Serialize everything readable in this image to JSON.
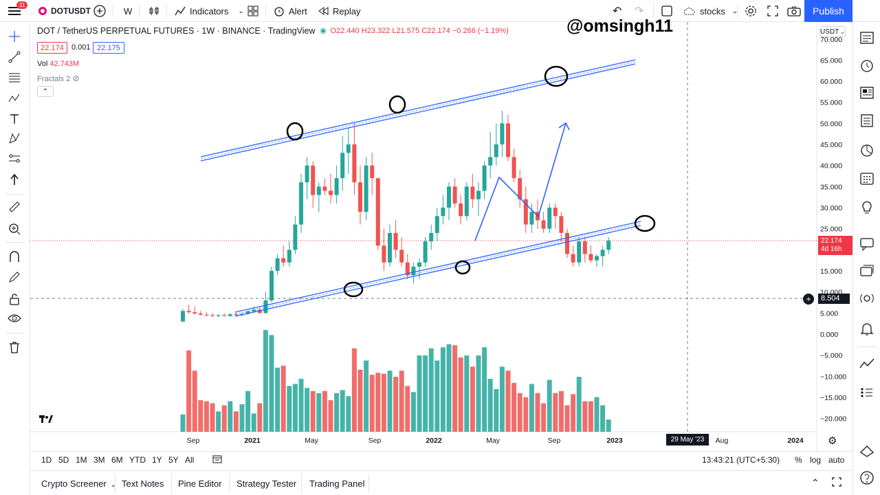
{
  "app": {
    "notification_count": "11"
  },
  "toolbar": {
    "symbol": "DOTUSDT",
    "interval": "W",
    "indicators": "Indicators",
    "alert": "Alert",
    "replay": "Replay",
    "layout_name": "stocks",
    "publish": "Publish"
  },
  "legend": {
    "title": "DOT / TetherUS PERPETUAL FUTURES · 1W · BINANCE · TradingView",
    "ohlc": "O22.440  H23.322  L21.575  C22.174  −0.266 (−1.19%)",
    "sell_price": "22.174",
    "spread": "0.001",
    "buy_price": "22.175",
    "vol_label": "Vol",
    "vol_value": "42.743M",
    "fractals_label": "Fractals 2"
  },
  "watermark": "@omsingh11",
  "currency": "USDT",
  "chart_data": {
    "type": "candlestick",
    "price_axis": [
      "70.000",
      "65.000",
      "60.000",
      "55.000",
      "50.000",
      "45.000",
      "40.000",
      "35.000",
      "30.000",
      "25.000",
      "20.000",
      "15.000",
      "10.000",
      "5.000",
      "0.000",
      "−5.000",
      "−10.000",
      "−15.000",
      "−20.000"
    ],
    "time_axis": [
      "Sep",
      "2021",
      "May",
      "Sep",
      "2022",
      "May",
      "Sep",
      "2023",
      "Aug",
      "2024"
    ],
    "last_price": "22.174",
    "countdown": "4d 16h",
    "crosshair_price": "8.504",
    "crosshair_date": "29 May '23",
    "up_color": "#26a69a",
    "down_color": "#ef5350",
    "channel_color": "#2962ff"
  },
  "time_ranges": [
    "1D",
    "5D",
    "1M",
    "3M",
    "6M",
    "YTD",
    "1Y",
    "5Y",
    "All"
  ],
  "clock": "13:43:21 (UTC+5:30)",
  "scale_options": {
    "percent": "%",
    "log": "log",
    "auto": "auto"
  },
  "bottom_tabs": [
    "Crypto Screener",
    "Text Notes",
    "Pine Editor",
    "Strategy Tester",
    "Trading Panel"
  ]
}
